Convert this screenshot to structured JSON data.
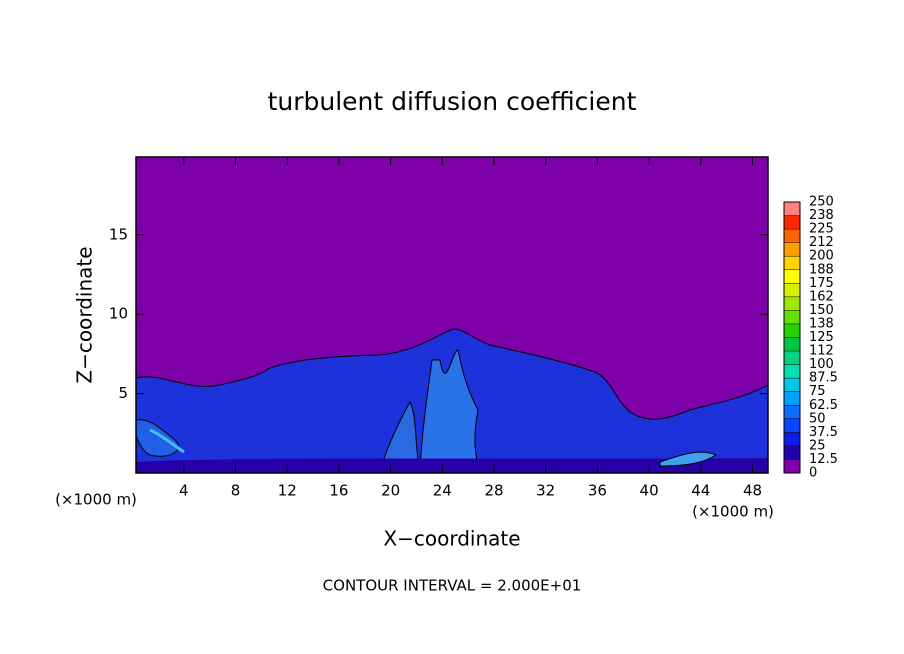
{
  "chart_data": {
    "type": "contour",
    "title": "turbulent diffusion coefficient",
    "x_label": "X−coordinate",
    "y_label": "Z−coordinate",
    "x_unit_left": "(×1000 m)",
    "x_unit_right": "(×1000 m)",
    "annotation": "CONTOUR INTERVAL = 2.000E+01",
    "xlim": [
      0.3,
      49.2
    ],
    "xticks": [
      4,
      8,
      12,
      16,
      20,
      24,
      28,
      32,
      36,
      40,
      44,
      48
    ],
    "ylim": [
      0,
      19.9
    ],
    "yticks": [
      5,
      10,
      15
    ],
    "colorbar": {
      "ticks": [
        0,
        12.5,
        25,
        37.5,
        50,
        62.5,
        75,
        87.5,
        100,
        112,
        125,
        138,
        150,
        162,
        175,
        188,
        200,
        212,
        225,
        238,
        250
      ],
      "colors": [
        "#7d00a8",
        "#2400a8",
        "#0a1ee6",
        "#0a46ff",
        "#0a6eff",
        "#00a0ff",
        "#00c8e6",
        "#00e0b4",
        "#00d282",
        "#00c446",
        "#28d200",
        "#64e000",
        "#a0e800",
        "#d8f000",
        "#ffff00",
        "#ffd200",
        "#ffa000",
        "#ff6400",
        "#ff2800",
        "#ff8080"
      ]
    }
  }
}
